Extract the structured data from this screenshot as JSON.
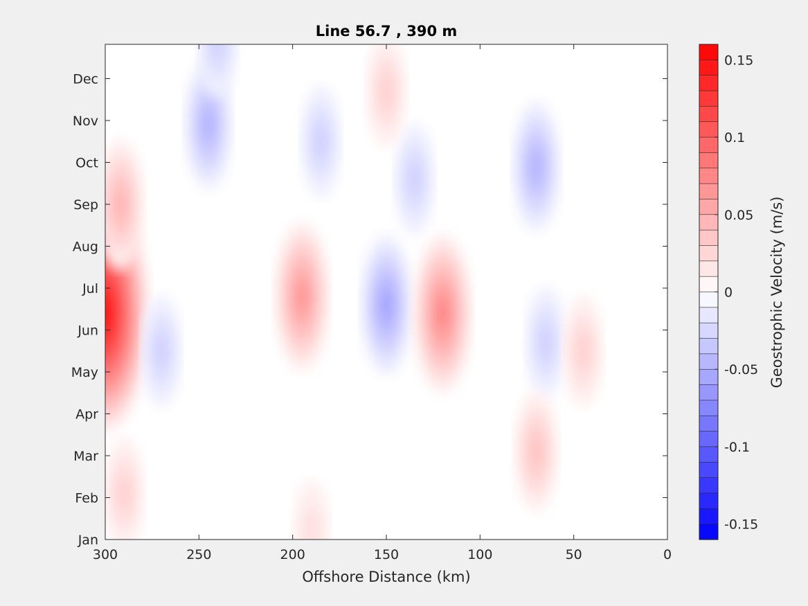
{
  "chart_data": {
    "type": "heatmap",
    "subtype": "filled-contour",
    "title": "Line 56.7 , 390 m",
    "xlabel": "Offshore Distance (km)",
    "ylabel": "",
    "x_reversed": true,
    "xlim": [
      0,
      300
    ],
    "x_ticks": [
      300,
      250,
      200,
      150,
      100,
      50,
      0
    ],
    "x_tick_labels": [
      "300",
      "250",
      "200",
      "150",
      "100",
      "50",
      "0"
    ],
    "y_ticks": [
      "Jan",
      "Feb",
      "Mar",
      "Apr",
      "May",
      "Jun",
      "Jul",
      "Aug",
      "Sep",
      "Oct",
      "Nov",
      "Dec"
    ],
    "grid": false,
    "colorbar": {
      "label": "Geostrophic Velocity (m/s)",
      "limits": [
        -0.16,
        0.16
      ],
      "tick_values": [
        0.15,
        0.1,
        0.05,
        0,
        -0.05,
        -0.1,
        -0.15
      ],
      "tick_labels": [
        "0.15",
        "0.1",
        "0.05",
        "0",
        "-0.05",
        "-0.1",
        "-0.15"
      ],
      "negative_color": "#0000ff",
      "zero_color": "#ffffff",
      "positive_color": "#ff0000"
    },
    "features": [
      {
        "distance_km": 300,
        "month": 5.4,
        "velocity": 0.16
      },
      {
        "distance_km": 292,
        "month": 8.0,
        "velocity": 0.05
      },
      {
        "distance_km": 290,
        "month": 1.1,
        "velocity": 0.03
      },
      {
        "distance_km": 270,
        "month": 4.5,
        "velocity": -0.03
      },
      {
        "distance_km": 245,
        "month": 9.9,
        "velocity": -0.05
      },
      {
        "distance_km": 240,
        "month": 11.9,
        "velocity": -0.03
      },
      {
        "distance_km": 195,
        "month": 5.8,
        "velocity": 0.07
      },
      {
        "distance_km": 190,
        "month": 0.2,
        "velocity": 0.02
      },
      {
        "distance_km": 150,
        "month": 5.6,
        "velocity": -0.06
      },
      {
        "distance_km": 120,
        "month": 5.4,
        "velocity": 0.08
      },
      {
        "distance_km": 135,
        "month": 8.6,
        "velocity": -0.03
      },
      {
        "distance_km": 185,
        "month": 9.5,
        "velocity": -0.03
      },
      {
        "distance_km": 70,
        "month": 8.9,
        "velocity": -0.05
      },
      {
        "distance_km": 65,
        "month": 4.7,
        "velocity": -0.03
      },
      {
        "distance_km": 70,
        "month": 2.1,
        "velocity": 0.04
      },
      {
        "distance_km": 45,
        "month": 4.5,
        "velocity": 0.03
      },
      {
        "distance_km": 150,
        "month": 10.7,
        "velocity": 0.03
      }
    ]
  }
}
